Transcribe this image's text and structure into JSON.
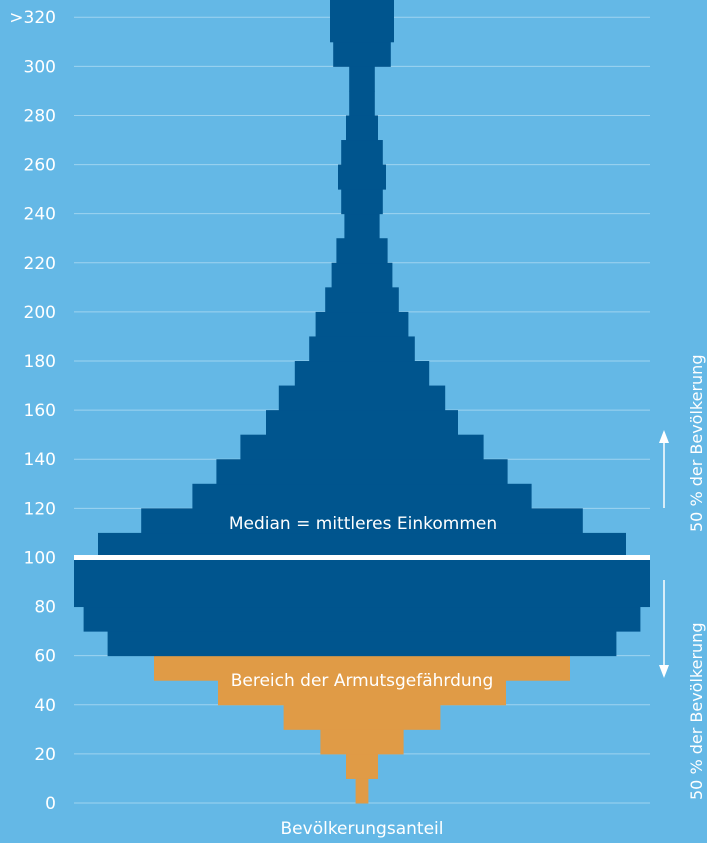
{
  "chart_data": {
    "type": "bar",
    "orientation": "horizontal-symmetric",
    "x_label": "Bevölkerungsanteil",
    "y_tick_labels": [
      "0",
      "20",
      "40",
      "60",
      "80",
      "100",
      "120",
      "140",
      "160",
      "180",
      "200",
      "220",
      "240",
      "260",
      "280",
      "300",
      ">320"
    ],
    "ylim": [
      0,
      320
    ],
    "grid": true,
    "median_value": 100,
    "median_label": "Median = mittleres Einkommen",
    "poverty_label": "Bereich der Armutsgefährdung",
    "annotation_upper": "50 % der Bevölkerung",
    "annotation_lower": "50 % der Bevölkerung",
    "bins": [
      {
        "from": 0,
        "to": 10,
        "share": 0.4,
        "group": "poverty"
      },
      {
        "from": 10,
        "to": 20,
        "share": 1.0,
        "group": "poverty"
      },
      {
        "from": 20,
        "to": 30,
        "share": 2.6,
        "group": "poverty"
      },
      {
        "from": 30,
        "to": 40,
        "share": 4.9,
        "group": "poverty"
      },
      {
        "from": 40,
        "to": 50,
        "share": 9.0,
        "group": "poverty"
      },
      {
        "from": 50,
        "to": 60,
        "share": 13.0,
        "group": "poverty"
      },
      {
        "from": 60,
        "to": 70,
        "share": 15.9,
        "group": "main"
      },
      {
        "from": 70,
        "to": 80,
        "share": 17.4,
        "group": "main"
      },
      {
        "from": 80,
        "to": 90,
        "share": 18.0,
        "group": "main"
      },
      {
        "from": 90,
        "to": 100,
        "share": 18.0,
        "group": "main"
      },
      {
        "from": 100,
        "to": 110,
        "share": 16.5,
        "group": "main"
      },
      {
        "from": 110,
        "to": 120,
        "share": 13.8,
        "group": "main"
      },
      {
        "from": 120,
        "to": 130,
        "share": 10.6,
        "group": "main"
      },
      {
        "from": 130,
        "to": 140,
        "share": 9.1,
        "group": "main"
      },
      {
        "from": 140,
        "to": 150,
        "share": 7.6,
        "group": "main"
      },
      {
        "from": 150,
        "to": 160,
        "share": 6.0,
        "group": "main"
      },
      {
        "from": 160,
        "to": 170,
        "share": 5.2,
        "group": "main"
      },
      {
        "from": 170,
        "to": 180,
        "share": 4.2,
        "group": "main"
      },
      {
        "from": 180,
        "to": 190,
        "share": 3.3,
        "group": "main"
      },
      {
        "from": 190,
        "to": 200,
        "share": 2.9,
        "group": "main"
      },
      {
        "from": 200,
        "to": 210,
        "share": 2.3,
        "group": "main"
      },
      {
        "from": 210,
        "to": 220,
        "share": 1.9,
        "group": "main"
      },
      {
        "from": 220,
        "to": 230,
        "share": 1.6,
        "group": "main"
      },
      {
        "from": 230,
        "to": 240,
        "share": 1.1,
        "group": "main"
      },
      {
        "from": 240,
        "to": 250,
        "share": 1.3,
        "group": "main"
      },
      {
        "from": 250,
        "to": 260,
        "share": 1.5,
        "group": "main"
      },
      {
        "from": 260,
        "to": 270,
        "share": 1.3,
        "group": "main"
      },
      {
        "from": 270,
        "to": 280,
        "share": 1.0,
        "group": "main"
      },
      {
        "from": 280,
        "to": 290,
        "share": 0.8,
        "group": "main"
      },
      {
        "from": 290,
        "to": 300,
        "share": 0.8,
        "group": "main"
      },
      {
        "from": 300,
        "to": 310,
        "share": 1.8,
        "group": "main"
      },
      {
        "from": 310,
        "to": 320,
        "share": 2.0,
        "group": "main"
      },
      {
        "from": 320,
        "to": 330,
        "share": 2.0,
        "group": "main"
      }
    ]
  },
  "colors": {
    "background": "#64b8e6",
    "main_bars": "#00558e",
    "poverty_bars": "#e09b46",
    "median_line": "#ffffff",
    "text": "#ffffff",
    "gridline": "#9ed3f0"
  }
}
